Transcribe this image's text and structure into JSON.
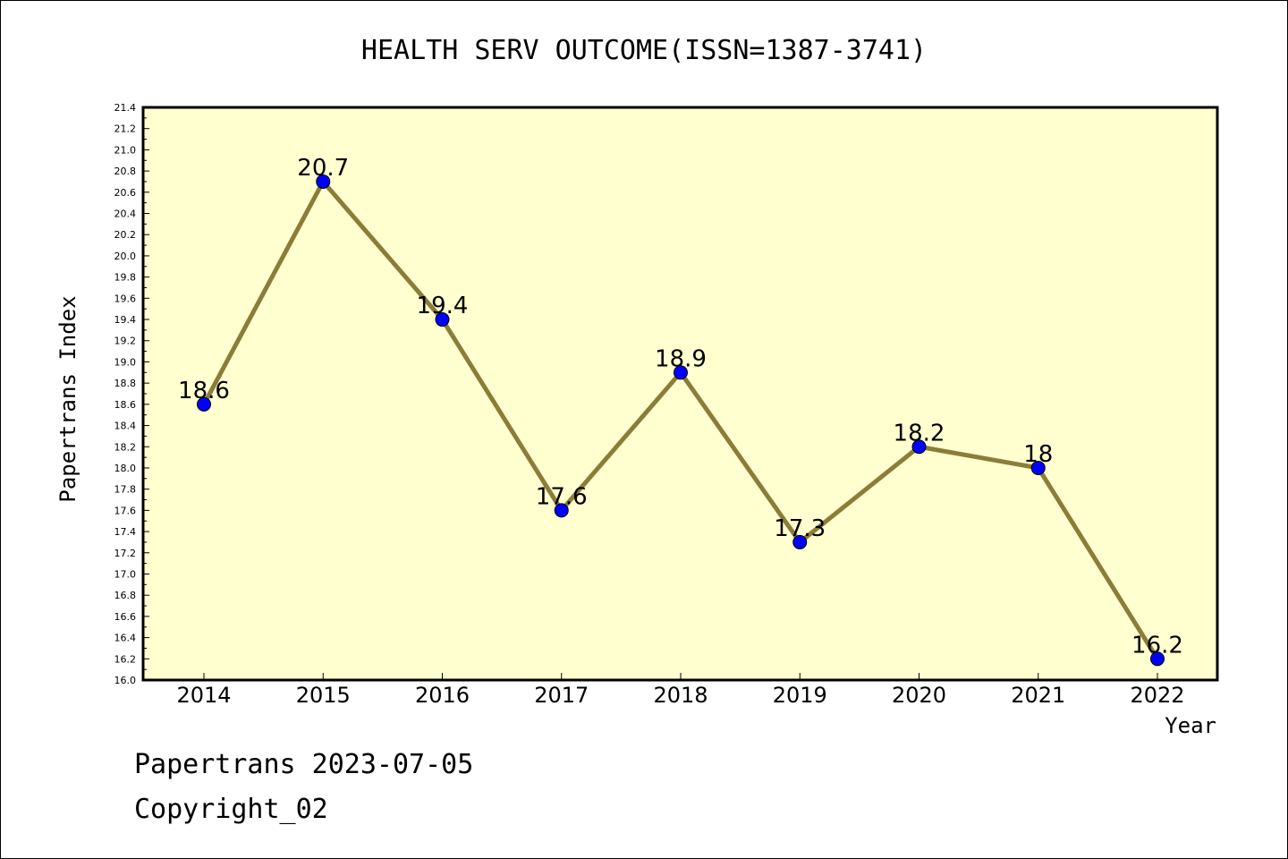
{
  "chart_data": {
    "type": "line",
    "title": "HEALTH SERV OUTCOME(ISSN=1387-3741)",
    "xlabel": "Year",
    "ylabel": "Papertrans Index",
    "x": [
      "2014",
      "2015",
      "2016",
      "2017",
      "2018",
      "2019",
      "2020",
      "2021",
      "2022"
    ],
    "values": [
      18.6,
      20.7,
      19.4,
      17.6,
      18.9,
      17.3,
      18.2,
      18.0,
      16.2
    ],
    "data_labels": [
      "18.6",
      "20.7",
      "19.4",
      "17.6",
      "18.9",
      "17.3",
      "18.2",
      "18",
      "16.2"
    ],
    "ylim": [
      16.0,
      21.4
    ],
    "yticks": [
      "16.0",
      "16.2",
      "16.4",
      "16.6",
      "16.8",
      "17.0",
      "17.2",
      "17.4",
      "17.6",
      "17.8",
      "18.0",
      "18.2",
      "18.4",
      "18.6",
      "18.8",
      "19.0",
      "19.2",
      "19.4",
      "19.6",
      "19.8",
      "20.0",
      "20.2",
      "20.4",
      "20.6",
      "20.8",
      "21.0",
      "21.2",
      "21.4"
    ],
    "grid": false,
    "legend": "none",
    "colors": {
      "plot_background": "#ffffd0",
      "line": "#8b7d38",
      "marker": "#0000ff"
    }
  },
  "footer": {
    "line1": "Papertrans 2023-07-05",
    "line2": "Copyright_02"
  }
}
